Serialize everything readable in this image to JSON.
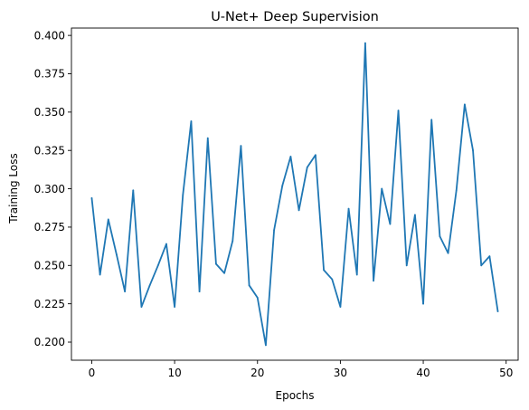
{
  "chart_data": {
    "type": "line",
    "title": "U-Net+ Deep Supervision",
    "xlabel": "Epochs",
    "ylabel": "Training Loss",
    "xlim": [
      -2.45,
      51.45
    ],
    "ylim": [
      0.1882,
      0.4048
    ],
    "x_ticks": [
      0,
      10,
      20,
      30,
      40,
      50
    ],
    "x_tick_labels": [
      "0",
      "10",
      "20",
      "30",
      "40",
      "50"
    ],
    "y_ticks": [
      0.2,
      0.225,
      0.25,
      0.275,
      0.3,
      0.325,
      0.35,
      0.375,
      0.4
    ],
    "y_tick_labels": [
      "0.200",
      "0.225",
      "0.250",
      "0.275",
      "0.300",
      "0.325",
      "0.350",
      "0.375",
      "0.400"
    ],
    "grid": false,
    "legend": "none",
    "series": [
      {
        "color": "#1f77b4",
        "x": [
          0,
          1,
          2,
          3,
          4,
          5,
          6,
          7,
          8,
          9,
          10,
          11,
          12,
          13,
          14,
          15,
          16,
          17,
          18,
          19,
          20,
          21,
          22,
          23,
          24,
          25,
          26,
          27,
          28,
          29,
          30,
          31,
          32,
          33,
          34,
          35,
          36,
          37,
          38,
          39,
          40,
          41,
          42,
          43,
          44,
          45,
          46,
          47,
          48,
          49
        ],
        "values": [
          0.294,
          0.244,
          0.28,
          0.257,
          0.233,
          0.299,
          0.223,
          0.237,
          0.25,
          0.264,
          0.223,
          0.296,
          0.344,
          0.233,
          0.333,
          0.251,
          0.245,
          0.266,
          0.328,
          0.237,
          0.229,
          0.198,
          0.273,
          0.302,
          0.321,
          0.286,
          0.314,
          0.322,
          0.247,
          0.241,
          0.223,
          0.287,
          0.244,
          0.395,
          0.24,
          0.3,
          0.277,
          0.351,
          0.25,
          0.283,
          0.225,
          0.345,
          0.269,
          0.258,
          0.299,
          0.355,
          0.325,
          0.25,
          0.256,
          0.22
        ]
      }
    ]
  }
}
